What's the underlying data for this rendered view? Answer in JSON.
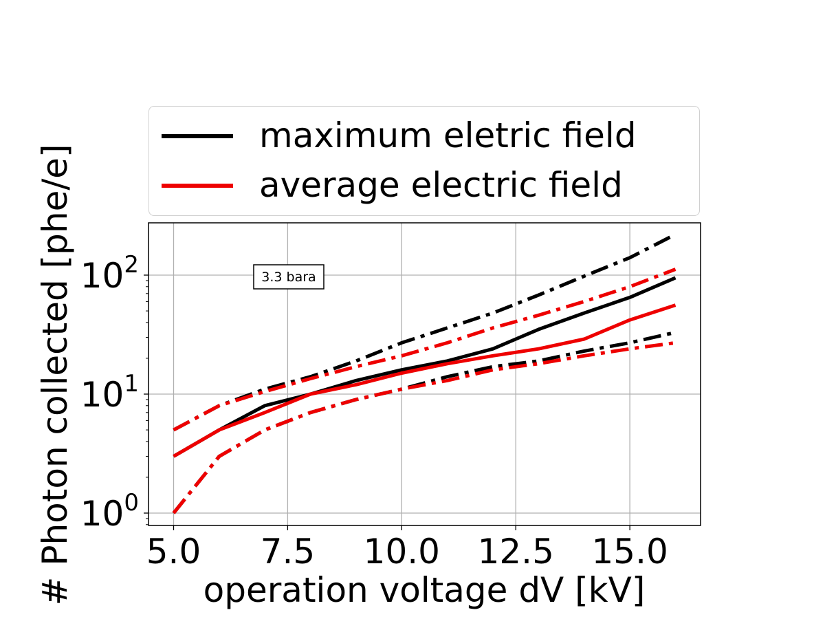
{
  "chart_data": {
    "type": "line",
    "xlabel": "operation voltage dV [kV]",
    "ylabel": "# Photon collected [phe/e]",
    "xlim": [
      4.45,
      16.55
    ],
    "ylim": [
      0.8,
      270
    ],
    "yscale": "log",
    "grid": true,
    "legend_position": "above plot",
    "x_ticks": [
      5.0,
      7.5,
      10.0,
      12.5,
      15.0
    ],
    "x_tick_labels": [
      "5.0",
      "7.5",
      "10.0",
      "12.5",
      "15.0"
    ],
    "y_ticks": [
      1,
      10,
      100
    ],
    "y_tick_labels": [
      {
        "base": "10",
        "exp": "0"
      },
      {
        "base": "10",
        "exp": "1"
      },
      {
        "base": "10",
        "exp": "2"
      }
    ],
    "annotation": "3.3 bara",
    "legend": [
      {
        "label": "maximum eletric field",
        "color": "#000000"
      },
      {
        "label": "average electric field",
        "color": "#ee0000"
      }
    ],
    "series": [
      {
        "color": "#000000",
        "style": "dashdot",
        "x": [
          5,
          6,
          7,
          8,
          9,
          10,
          11,
          12,
          13,
          14,
          15,
          16
        ],
        "y": [
          5,
          8,
          11,
          14,
          19,
          27,
          36,
          48,
          68,
          98,
          140,
          220
        ]
      },
      {
        "color": "#000000",
        "style": "solid",
        "x": [
          5,
          6,
          7,
          8,
          9,
          10,
          11,
          12,
          13,
          14,
          15,
          16
        ],
        "y": [
          3,
          5,
          8,
          10,
          13,
          16,
          19,
          24,
          35,
          48,
          65,
          95
        ]
      },
      {
        "color": "#000000",
        "style": "dashdot",
        "x": [
          5,
          6,
          7,
          8,
          9,
          10,
          11,
          12,
          13,
          14,
          15,
          16
        ],
        "y": [
          1,
          3,
          5,
          7,
          9,
          11,
          14,
          17,
          19,
          23,
          27,
          33
        ]
      },
      {
        "color": "#ee0000",
        "style": "dashdot",
        "x": [
          5,
          6,
          7,
          8,
          9,
          10,
          11,
          12,
          13,
          14,
          15,
          16
        ],
        "y": [
          5,
          8,
          10.5,
          13.5,
          17,
          21,
          27,
          36,
          46,
          60,
          80,
          112
        ]
      },
      {
        "color": "#ee0000",
        "style": "solid",
        "x": [
          5,
          6,
          7,
          8,
          9,
          10,
          11,
          12,
          13,
          14,
          15,
          16
        ],
        "y": [
          3,
          5,
          7,
          10,
          12,
          15,
          18,
          21,
          24,
          29,
          42,
          56
        ]
      },
      {
        "color": "#ee0000",
        "style": "dashdot",
        "x": [
          5,
          6,
          7,
          8,
          9,
          10,
          11,
          12,
          13,
          14,
          15,
          16
        ],
        "y": [
          1,
          3,
          5,
          7,
          9,
          11,
          13,
          16,
          18,
          21,
          24,
          27
        ]
      }
    ]
  }
}
